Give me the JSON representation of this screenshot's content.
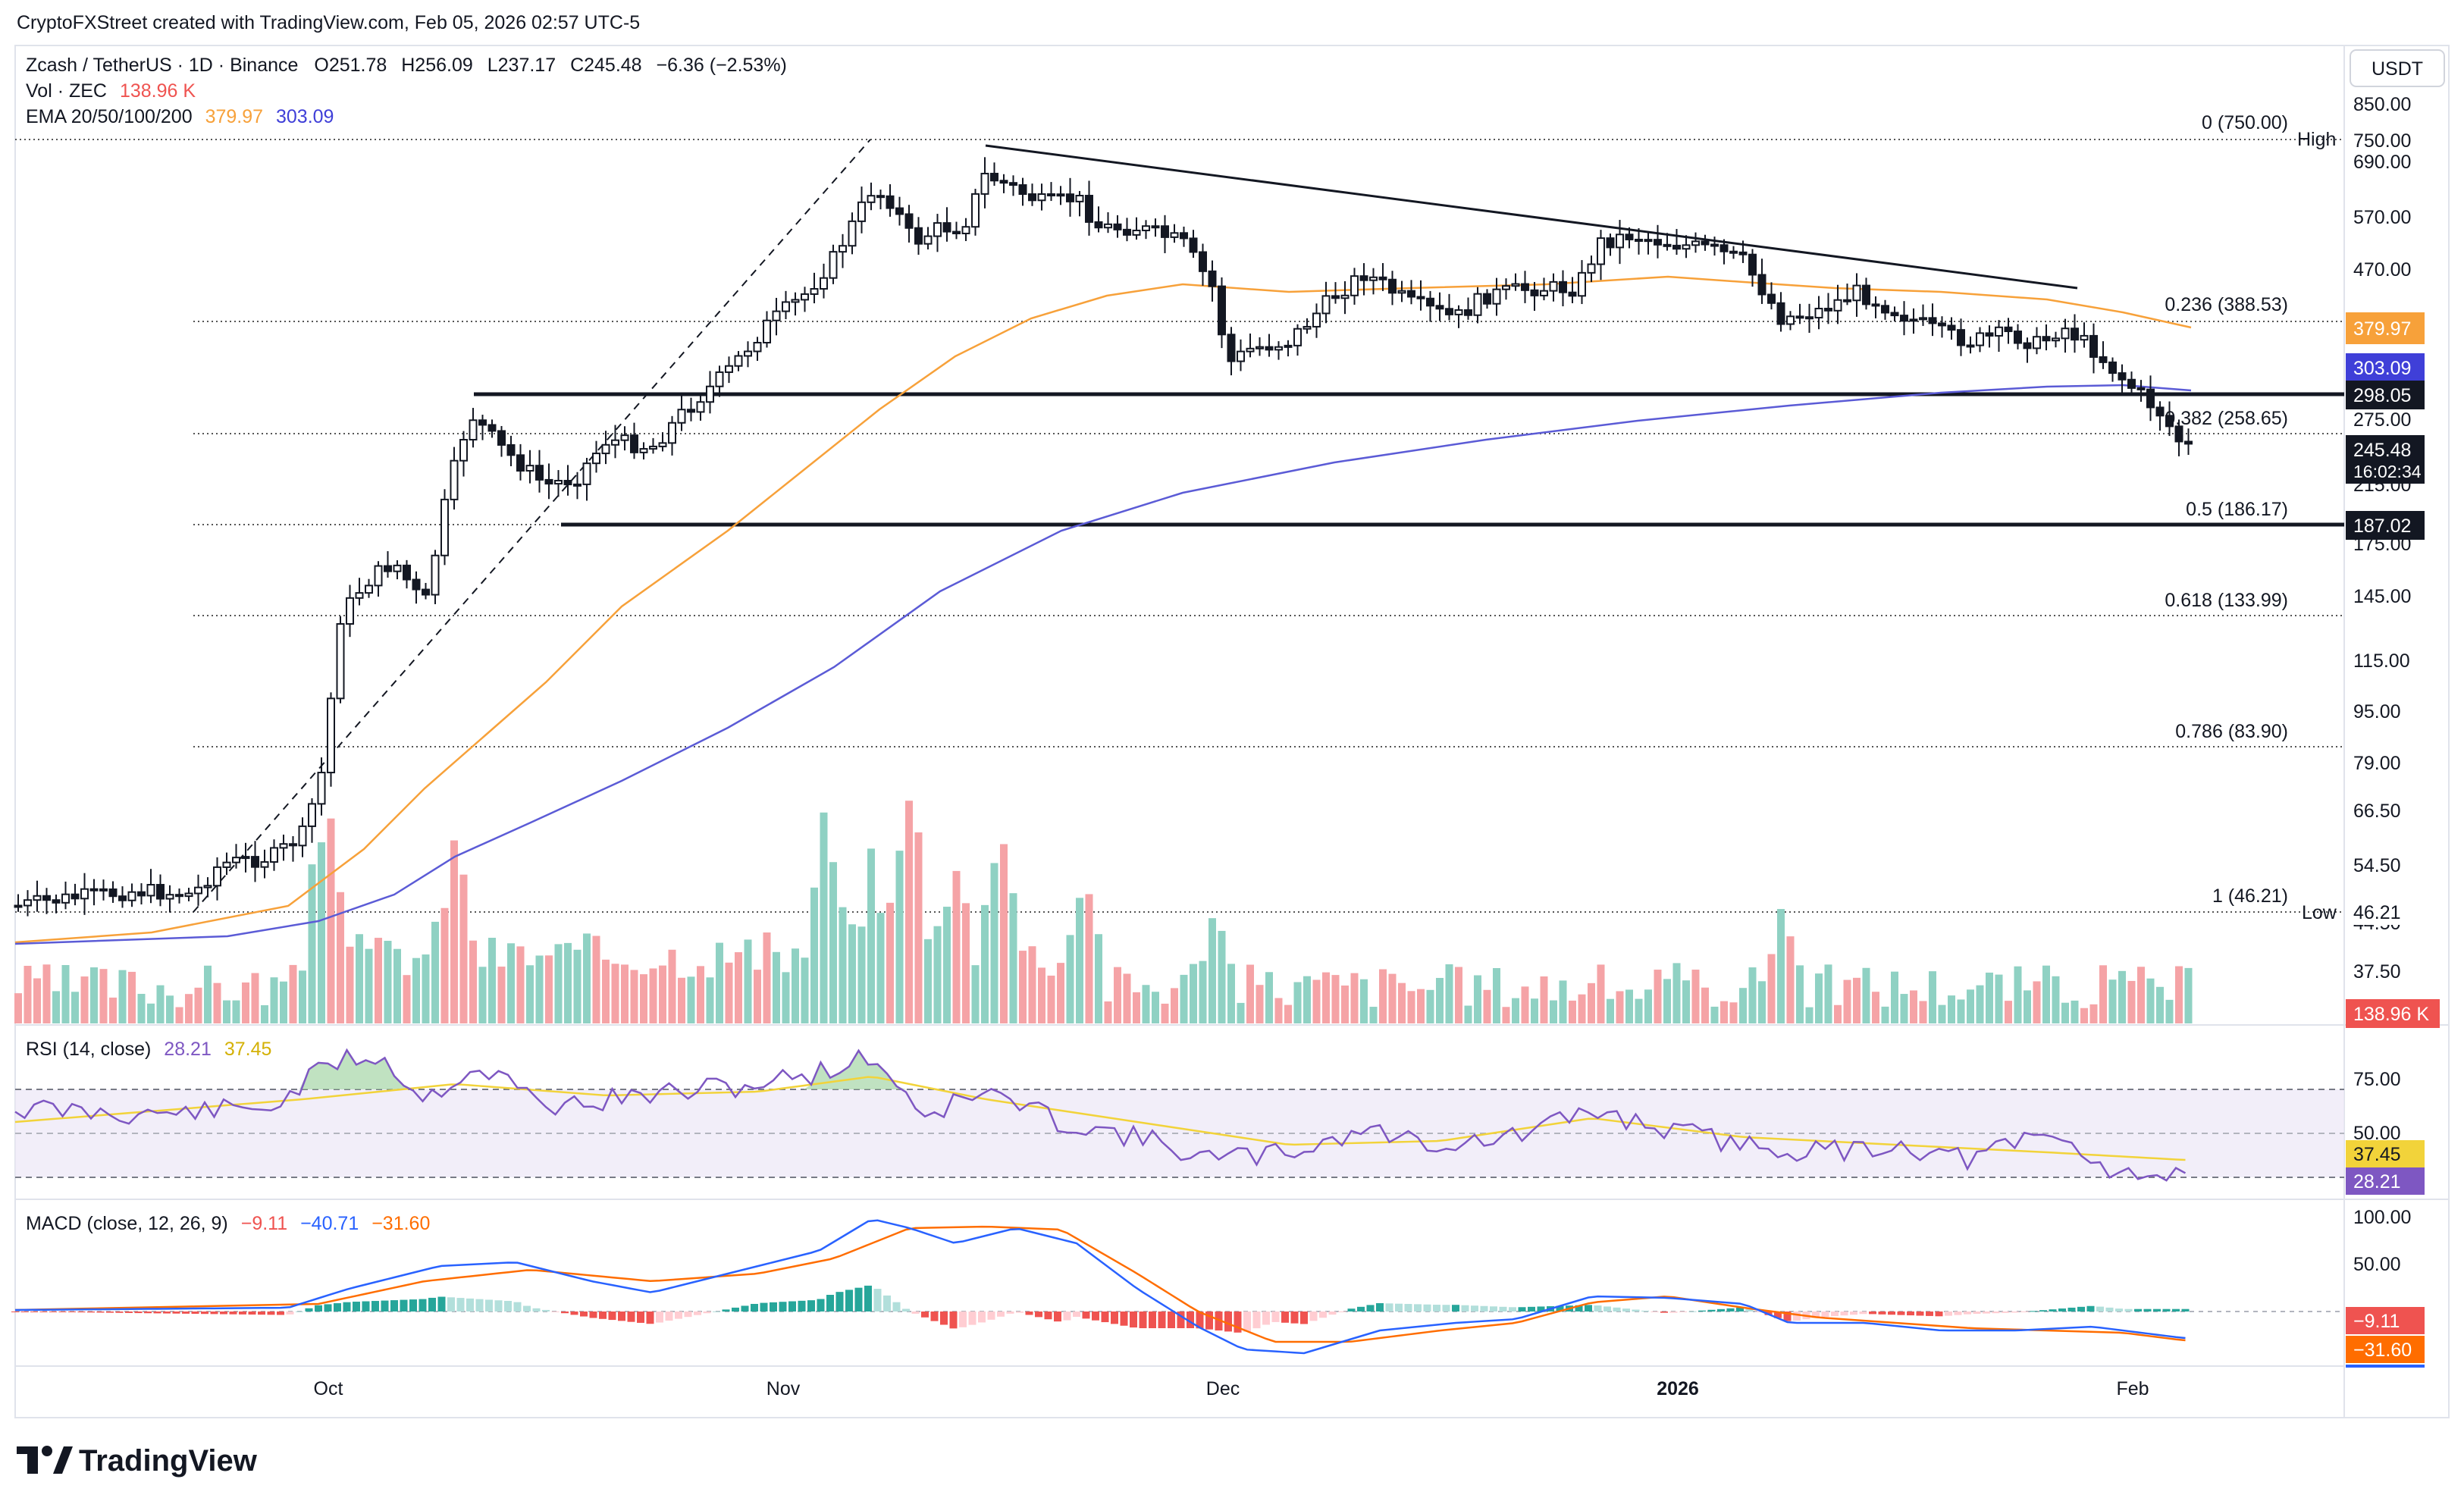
{
  "header": {
    "attribution": "CryptoFXStreet created with TradingView.com, Feb 05, 2026 02:57 UTC-5"
  },
  "legend": {
    "symbol": "Zcash / TetherUS · 1D · Binance",
    "open": "O251.78",
    "high": "H256.09",
    "low": "L237.17",
    "close": "C245.48",
    "change": "−6.36 (−2.53%)",
    "vol_label": "Vol · ZEC",
    "vol_value": "138.96 K",
    "ema_label": "EMA 20/50/100/200",
    "ema1": "379.97",
    "ema2": "303.09"
  },
  "axis": {
    "currency": "USDT",
    "price_ticks": [
      "850.00",
      "690.00",
      "570.00",
      "470.00",
      "275.00",
      "215.00",
      "175.00",
      "145.00",
      "115.00",
      "95.00",
      "79.00",
      "66.50",
      "54.50",
      "44.50",
      "37.50"
    ],
    "time_ticks": [
      "Oct",
      "Nov",
      "Dec",
      "2026",
      "Feb"
    ],
    "rsi_ticks": [
      "75.00",
      "50.00"
    ],
    "macd_ticks": [
      "100.00",
      "50.00"
    ]
  },
  "price_labels": {
    "high_tag": "High",
    "high_value": "750.00",
    "ema_orange": "379.97",
    "ema_blue": "303.09",
    "level_upper": "298.05",
    "last_price": "245.48",
    "countdown": "16:02:34",
    "level_lower": "187.02",
    "low_tag": "Low",
    "low_value": "46.21",
    "volume": "138.96 K"
  },
  "fib": [
    {
      "label": "0 (750.00)"
    },
    {
      "label": "0.236 (388.53)"
    },
    {
      "label": "0.382 (258.65)"
    },
    {
      "label": "0.5 (186.17)"
    },
    {
      "label": "0.618 (133.99)"
    },
    {
      "label": "0.786 (83.90)"
    },
    {
      "label": "1 (46.21)"
    }
  ],
  "rsi": {
    "label": "RSI (14, close)",
    "value": "28.21",
    "ma": "37.45",
    "tag_ma": "37.45",
    "tag_value": "28.21"
  },
  "macd": {
    "label": "MACD (close, 12, 26, 9)",
    "hist": "−9.11",
    "macd": "−40.71",
    "signal": "−31.60",
    "tag_hist": "−9.11",
    "tag_signal": "−31.60"
  },
  "footer": {
    "brand": "TradingView"
  },
  "colors": {
    "ema_orange": "#f7a13a",
    "ema_blue": "#5b5bd6",
    "vol_up": "#8fd1c3",
    "vol_down": "#f5a3a6",
    "rsi_line": "#7e57c2",
    "rsi_ma": "#f2d33a",
    "macd_line": "#2962ff",
    "signal_line": "#ff6d00",
    "hist_up": "#26a69a",
    "hist_down": "#ef5350"
  }
}
